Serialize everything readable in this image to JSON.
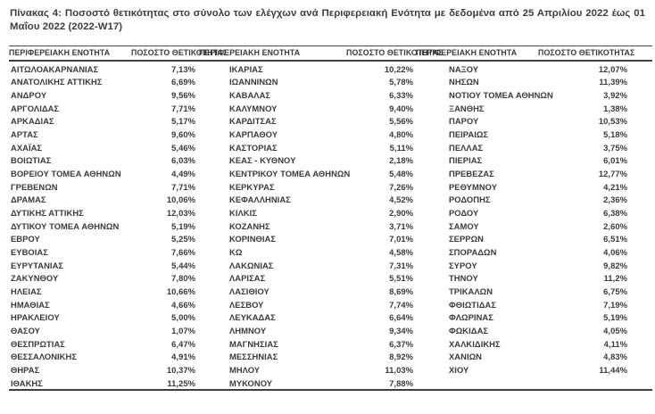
{
  "title": "Πίνακας 4:  Ποσοστό θετικότητας στο σύνολο των ελέγχων ανά Περιφερειακή Ενότητα με δεδομένα από 25 Απριλίου 2022 έως 01 Μαΐου 2022 (2022-W17)",
  "table": {
    "header": {
      "region": "ΠΕΡΙΦΕΡΕΙΑΚΗ ΕΝΟΤΗΤΑ",
      "positivity": "ΠΟΣΟΣΤΟ ΘΕΤΙΚΟΤΗΤΑΣ"
    },
    "columns": [
      {
        "rows": [
          {
            "region": "ΑΙΤΩΛΟΑΚΑΡΝΑΝΙΑΣ",
            "value": "7,13%"
          },
          {
            "region": "ΑΝΑΤΟΛΙΚΗΣ ΑΤΤΙΚΗΣ",
            "value": "6,69%"
          },
          {
            "region": "ΑΝΔΡΟΥ",
            "value": "9,56%"
          },
          {
            "region": "ΑΡΓΟΛΙΔΑΣ",
            "value": "7,71%"
          },
          {
            "region": "ΑΡΚΑΔΙΑΣ",
            "value": "5,17%"
          },
          {
            "region": "ΑΡΤΑΣ",
            "value": "9,60%"
          },
          {
            "region": "ΑΧΑΪΑΣ",
            "value": "5,46%"
          },
          {
            "region": "ΒΟΙΩΤΙΑΣ",
            "value": "6,03%"
          },
          {
            "region": "ΒΟΡΕΙΟΥ ΤΟΜΕΑ ΑΘΗΝΩΝ",
            "value": "4,49%"
          },
          {
            "region": "ΓΡΕΒΕΝΩΝ",
            "value": "7,71%"
          },
          {
            "region": "ΔΡΑΜΑΣ",
            "value": "10,06%"
          },
          {
            "region": "ΔΥΤΙΚΗΣ ΑΤΤΙΚΗΣ",
            "value": "12,03%"
          },
          {
            "region": "ΔΥΤΙΚΟΥ ΤΟΜΕΑ ΑΘΗΝΩΝ",
            "value": "5,19%"
          },
          {
            "region": "ΕΒΡΟΥ",
            "value": "5,25%"
          },
          {
            "region": "ΕΥΒΟΙΑΣ",
            "value": "7,66%"
          },
          {
            "region": "ΕΥΡΥΤΑΝΙΑΣ",
            "value": "5,44%"
          },
          {
            "region": "ΖΑΚΥΝΘΟΥ",
            "value": "7,80%"
          },
          {
            "region": "ΗΛΕΙΑΣ",
            "value": "10,66%"
          },
          {
            "region": "ΗΜΑΘΙΑΣ",
            "value": "4,66%"
          },
          {
            "region": "ΗΡΑΚΛΕΙΟΥ",
            "value": "5,00%"
          },
          {
            "region": "ΘΑΣΟΥ",
            "value": "1,07%"
          },
          {
            "region": "ΘΕΣΠΡΩΤΙΑΣ",
            "value": "6,47%"
          },
          {
            "region": "ΘΕΣΣΑΛΟΝΙΚΗΣ",
            "value": "4,91%"
          },
          {
            "region": "ΘΗΡΑΣ",
            "value": "10,37%"
          },
          {
            "region": "ΙΘΑΚΗΣ",
            "value": "11,25%"
          }
        ]
      },
      {
        "rows": [
          {
            "region": "ΙΚΑΡΙΑΣ",
            "value": "10,22%"
          },
          {
            "region": "ΙΩΑΝΝΙΝΩΝ",
            "value": "5,78%"
          },
          {
            "region": "ΚΑΒΑΛΑΣ",
            "value": "6,33%"
          },
          {
            "region": "ΚΑΛΥΜΝΟΥ",
            "value": "9,40%"
          },
          {
            "region": "ΚΑΡΔΙΤΣΑΣ",
            "value": "5,56%"
          },
          {
            "region": "ΚΑΡΠΑΘΟΥ",
            "value": "4,80%"
          },
          {
            "region": "ΚΑΣΤΟΡΙΑΣ",
            "value": "5,11%"
          },
          {
            "region": "ΚΕΑΣ - ΚΥΘΝΟΥ",
            "value": "2,18%"
          },
          {
            "region": "ΚΕΝΤΡΙΚΟΥ ΤΟΜΕΑ ΑΘΗΝΩΝ",
            "value": "5,48%"
          },
          {
            "region": "ΚΕΡΚΥΡΑΣ",
            "value": "7,26%"
          },
          {
            "region": "ΚΕΦΑΛΛΗΝΙΑΣ",
            "value": "4,52%"
          },
          {
            "region": "ΚΙΛΚΙΣ",
            "value": "2,90%"
          },
          {
            "region": "ΚΟΖΑΝΗΣ",
            "value": "3,71%"
          },
          {
            "region": "ΚΟΡΙΝΘΙΑΣ",
            "value": "7,01%"
          },
          {
            "region": "ΚΩ",
            "value": "4,58%"
          },
          {
            "region": "ΛΑΚΩΝΙΑΣ",
            "value": "7,31%"
          },
          {
            "region": "ΛΑΡΙΣΑΣ",
            "value": "5,51%"
          },
          {
            "region": "ΛΑΣΙΘΙΟΥ",
            "value": "8,69%"
          },
          {
            "region": "ΛΕΣΒΟΥ",
            "value": "7,74%"
          },
          {
            "region": "ΛΕΥΚΑΔΑΣ",
            "value": "6,64%"
          },
          {
            "region": "ΛΗΜΝΟΥ",
            "value": "9,34%"
          },
          {
            "region": "ΜΑΓΝΗΣΙΑΣ",
            "value": "6,37%"
          },
          {
            "region": "ΜΕΣΣΗΝΙΑΣ",
            "value": "8,92%"
          },
          {
            "region": "ΜΗΛΟΥ",
            "value": "11,03%"
          },
          {
            "region": "ΜΥΚΟΝΟΥ",
            "value": "7,88%"
          }
        ]
      },
      {
        "rows": [
          {
            "region": "ΝΑΞΟΥ",
            "value": "12,07%"
          },
          {
            "region": "ΝΗΣΩΝ",
            "value": "11,39%"
          },
          {
            "region": "ΝΟΤΙΟΥ ΤΟΜΕΑ ΑΘΗΝΩΝ",
            "value": "3,92%"
          },
          {
            "region": "ΞΑΝΘΗΣ",
            "value": "1,38%"
          },
          {
            "region": "ΠΑΡΟΥ",
            "value": "10,53%"
          },
          {
            "region": "ΠΕΙΡΑΙΩΣ",
            "value": "5,18%"
          },
          {
            "region": "ΠΕΛΛΑΣ",
            "value": "3,75%"
          },
          {
            "region": "ΠΙΕΡΙΑΣ",
            "value": "6,01%"
          },
          {
            "region": "ΠΡΕΒΕΖΑΣ",
            "value": "12,77%"
          },
          {
            "region": "ΡΕΘΥΜΝΟΥ",
            "value": "4,21%"
          },
          {
            "region": "ΡΟΔΟΠΗΣ",
            "value": "2,36%"
          },
          {
            "region": "ΡΟΔΟΥ",
            "value": "6,38%"
          },
          {
            "region": "ΣΑΜΟΥ",
            "value": "2,60%"
          },
          {
            "region": "ΣΕΡΡΩΝ",
            "value": "6,51%"
          },
          {
            "region": "ΣΠΟΡΑΔΩΝ",
            "value": "4,06%"
          },
          {
            "region": "ΣΥΡΟΥ",
            "value": "9,82%"
          },
          {
            "region": "ΤΗΝΟΥ",
            "value": "11,2%"
          },
          {
            "region": "ΤΡΙΚΑΛΩΝ",
            "value": "6,75%"
          },
          {
            "region": "ΦΘΙΩΤΙΔΑΣ",
            "value": "7,19%"
          },
          {
            "region": "ΦΛΩΡΙΝΑΣ",
            "value": "5,19%"
          },
          {
            "region": "ΦΩΚΙΔΑΣ",
            "value": "4,05%"
          },
          {
            "region": "ΧΑΛΚΙΔΙΚΗΣ",
            "value": "4,11%"
          },
          {
            "region": "ΧΑΝΙΩΝ",
            "value": "4,83%"
          },
          {
            "region": "ΧΙΟΥ",
            "value": "11,44%"
          }
        ]
      }
    ]
  },
  "colors": {
    "text": "#3a3a3a",
    "rule": "#3f3f3f",
    "background": "#ffffff"
  }
}
